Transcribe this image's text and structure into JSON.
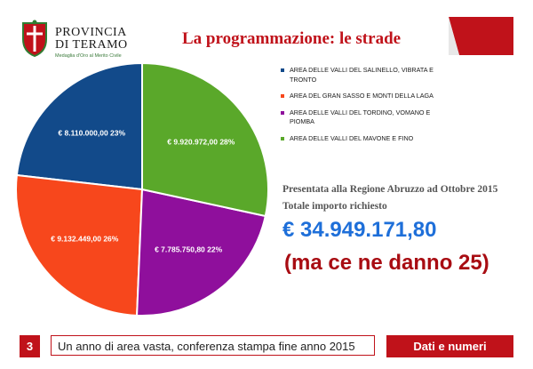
{
  "header": {
    "logo_line1": "PROVINCIA",
    "logo_line2": "DI TERAMO",
    "logo_motto": "Medaglia d'Oro al Merito Civile",
    "title": "La programmazione: le strade"
  },
  "colors": {
    "accent": "#c0121a",
    "highlight_blue": "#1e6fd9",
    "dark_red": "#a80c12"
  },
  "chart_data": {
    "type": "pie",
    "start": "top",
    "direction": "counterclockwise",
    "series": [
      {
        "name": "AREA DELLE VALLI DEL SALINELLO, VIBRATA E TRONTO",
        "value": 8110000.0,
        "label": "€ 8.110.000,00  23%",
        "color": "#124a8a"
      },
      {
        "name": "AREA DEL GRAN SASSO E MONTI DELLA LAGA",
        "value": 9132449.0,
        "label": "€ 9.132.449,00  26%",
        "color": "#f7471c"
      },
      {
        "name": "AREA DELLE VALLI DEL TORDINO, VOMANO E PIOMBA",
        "value": 7785750.8,
        "label": "€ 7.785.750,80  22%",
        "color": "#8f0f9c"
      },
      {
        "name": "AREA DELLE VALLI DEL MAVONE E FINO",
        "value": 9920972.0,
        "label": "€ 9.920.972,00  28%",
        "color": "#5aa82a"
      }
    ]
  },
  "info": {
    "presented": "Presentata alla Regione Abruzzo ad Ottobre 2015",
    "total_label": "Totale importo richiesto",
    "total_value": "€ 34.949.171,80",
    "note": "(ma ce ne danno 25)"
  },
  "footer": {
    "slide_number": "3",
    "caption": "Un anno di area vasta, conferenza stampa fine anno 2015",
    "tab_label": "Dati e numeri"
  }
}
